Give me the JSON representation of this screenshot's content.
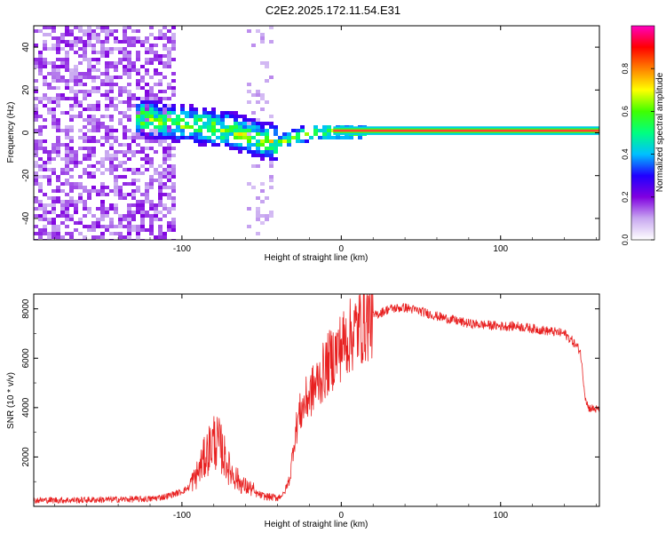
{
  "title": "C2E2.2025.172.11.54.E31",
  "chart_data": [
    {
      "type": "heatmap",
      "xlabel": "Height of straight line (km)",
      "ylabel": "Frequency (Hz)",
      "xlim": [
        -193,
        162
      ],
      "ylim": [
        -50,
        50
      ],
      "x_ticks": [
        -100,
        0,
        100
      ],
      "x_tick_labels": [
        "-100",
        "0",
        "100"
      ],
      "y_ticks": [
        -40,
        -20,
        0,
        20,
        40
      ],
      "y_tick_labels": [
        "-40",
        "-20",
        "0",
        "20",
        "40"
      ],
      "ridge": {
        "description_points": [
          [
            -130,
            8
          ],
          [
            -110,
            6
          ],
          [
            -90,
            4
          ],
          [
            -70,
            2
          ],
          [
            -55,
            -2
          ],
          [
            -40,
            -4
          ],
          [
            -30,
            -1
          ],
          [
            -20,
            1
          ],
          [
            -5,
            1
          ],
          [
            10,
            1
          ],
          [
            162,
            1
          ]
        ],
        "band_halfwidth_hz": 2
      },
      "colorbar": {
        "label": "Normalized spectral amplitude",
        "range": [
          0,
          1
        ],
        "ticks": [
          0.0,
          0.2,
          0.4,
          0.6,
          0.8
        ],
        "tick_labels": [
          "0.0",
          "0.2",
          "0.4",
          "0.6",
          "0.8"
        ],
        "stops": [
          "#ffffff",
          "#c8a8f0",
          "#8000e0",
          "#2000ff",
          "#00c0ff",
          "#00ff80",
          "#40ff00",
          "#ffff00",
          "#ff8000",
          "#ff0000",
          "#ff00c0"
        ]
      },
      "grid": false
    },
    {
      "type": "line",
      "xlabel": "Height of straight line (km)",
      "ylabel": "SNR (10 * v/v)",
      "xlim": [
        -193,
        162
      ],
      "ylim": [
        0,
        8600
      ],
      "x_ticks": [
        -100,
        0,
        100
      ],
      "x_tick_labels": [
        "-100",
        "0",
        "100"
      ],
      "y_ticks": [
        2000,
        4000,
        6000,
        8000
      ],
      "y_tick_labels": [
        "2000",
        "4000",
        "6000",
        "8000"
      ],
      "series": [
        {
          "color": "#e82020",
          "envelope": [
            [
              -193,
              250
            ],
            [
              -170,
              250
            ],
            [
              -140,
              280
            ],
            [
              -120,
              300
            ],
            [
              -110,
              400
            ],
            [
              -100,
              600
            ],
            [
              -92,
              900
            ],
            [
              -85,
              1700
            ],
            [
              -80,
              2200
            ],
            [
              -76,
              2000
            ],
            [
              -70,
              1200
            ],
            [
              -62,
              700
            ],
            [
              -55,
              550
            ],
            [
              -48,
              400
            ],
            [
              -40,
              350
            ],
            [
              -36,
              500
            ],
            [
              -32,
              1200
            ],
            [
              -30,
              2500
            ],
            [
              -27,
              3600
            ],
            [
              -22,
              4300
            ],
            [
              -15,
              5000
            ],
            [
              -8,
              5800
            ],
            [
              0,
              6500
            ],
            [
              10,
              7200
            ],
            [
              20,
              7700
            ],
            [
              30,
              8000
            ],
            [
              40,
              8050
            ],
            [
              50,
              7900
            ],
            [
              60,
              7700
            ],
            [
              70,
              7550
            ],
            [
              80,
              7400
            ],
            [
              90,
              7350
            ],
            [
              100,
              7300
            ],
            [
              110,
              7300
            ],
            [
              120,
              7200
            ],
            [
              130,
              7100
            ],
            [
              140,
              7000
            ],
            [
              145,
              6700
            ],
            [
              150,
              6300
            ],
            [
              153,
              4500
            ],
            [
              155,
              4000
            ],
            [
              162,
              3900
            ]
          ]
        }
      ],
      "grid": false
    }
  ]
}
